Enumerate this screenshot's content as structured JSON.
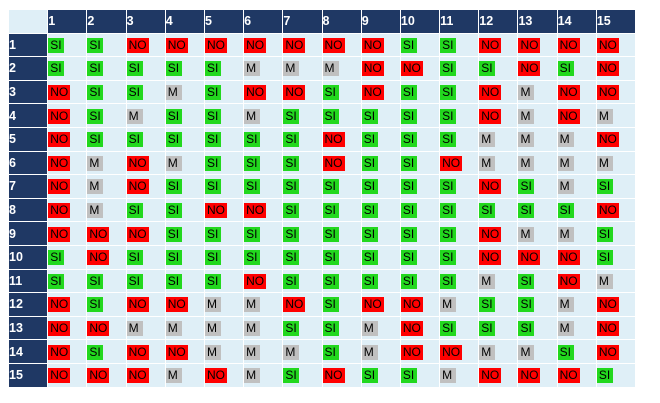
{
  "table": {
    "column_headers": [
      "1",
      "2",
      "3",
      "4",
      "5",
      "6",
      "7",
      "8",
      "9",
      "10",
      "11",
      "12",
      "13",
      "14",
      "15"
    ],
    "row_headers": [
      "1",
      "2",
      "3",
      "4",
      "5",
      "6",
      "7",
      "8",
      "9",
      "10",
      "11",
      "12",
      "13",
      "14",
      "15"
    ],
    "rows": [
      [
        "SI",
        "SI",
        "NO",
        "NO",
        "NO",
        "NO",
        "NO",
        "NO",
        "NO",
        "SI",
        "SI",
        "NO",
        "NO",
        "NO",
        "NO"
      ],
      [
        "SI",
        "SI",
        "SI",
        "SI",
        "SI",
        "M",
        "M",
        "M",
        "NO",
        "NO",
        "SI",
        "SI",
        "NO",
        "SI",
        "NO"
      ],
      [
        "NO",
        "SI",
        "SI",
        "M",
        "SI",
        "NO",
        "NO",
        "SI",
        "NO",
        "SI",
        "SI",
        "NO",
        "M",
        "NO",
        "NO"
      ],
      [
        "NO",
        "SI",
        "M",
        "SI",
        "SI",
        "M",
        "SI",
        "SI",
        "SI",
        "SI",
        "SI",
        "NO",
        "M",
        "NO",
        "M"
      ],
      [
        "NO",
        "SI",
        "SI",
        "SI",
        "SI",
        "SI",
        "SI",
        "NO",
        "SI",
        "SI",
        "SI",
        "M",
        "M",
        "M",
        "NO"
      ],
      [
        "NO",
        "M",
        "NO",
        "M",
        "SI",
        "SI",
        "SI",
        "NO",
        "SI",
        "SI",
        "NO",
        "M",
        "M",
        "M",
        "M"
      ],
      [
        "NO",
        "M",
        "NO",
        "SI",
        "SI",
        "SI",
        "SI",
        "SI",
        "SI",
        "SI",
        "SI",
        "NO",
        "SI",
        "M",
        "SI"
      ],
      [
        "NO",
        "M",
        "SI",
        "SI",
        "NO",
        "NO",
        "SI",
        "SI",
        "SI",
        "SI",
        "SI",
        "SI",
        "SI",
        "SI",
        "NO"
      ],
      [
        "NO",
        "NO",
        "NO",
        "SI",
        "SI",
        "SI",
        "SI",
        "SI",
        "SI",
        "SI",
        "SI",
        "NO",
        "M",
        "M",
        "SI"
      ],
      [
        "SI",
        "NO",
        "SI",
        "SI",
        "SI",
        "SI",
        "SI",
        "SI",
        "SI",
        "SI",
        "SI",
        "NO",
        "NO",
        "NO",
        "SI"
      ],
      [
        "SI",
        "SI",
        "SI",
        "SI",
        "SI",
        "NO",
        "SI",
        "SI",
        "SI",
        "SI",
        "SI",
        "M",
        "SI",
        "NO",
        "M"
      ],
      [
        "NO",
        "SI",
        "NO",
        "NO",
        "M",
        "M",
        "NO",
        "SI",
        "NO",
        "NO",
        "M",
        "SI",
        "SI",
        "M",
        "NO"
      ],
      [
        "NO",
        "NO",
        "M",
        "M",
        "M",
        "M",
        "SI",
        "SI",
        "M",
        "NO",
        "SI",
        "SI",
        "SI",
        "M",
        "NO"
      ],
      [
        "NO",
        "SI",
        "NO",
        "NO",
        "M",
        "M",
        "M",
        "SI",
        "M",
        "NO",
        "NO",
        "M",
        "M",
        "SI",
        "NO"
      ],
      [
        "NO",
        "NO",
        "NO",
        "M",
        "NO",
        "M",
        "SI",
        "NO",
        "SI",
        "SI",
        "M",
        "NO",
        "NO",
        "NO",
        "SI"
      ]
    ]
  },
  "colors": {
    "header_bg": "#1f3864",
    "cell_bg": "#dfeff7",
    "si": "#22d81e",
    "no": "#ff0000",
    "m": "#c0c0c0"
  }
}
